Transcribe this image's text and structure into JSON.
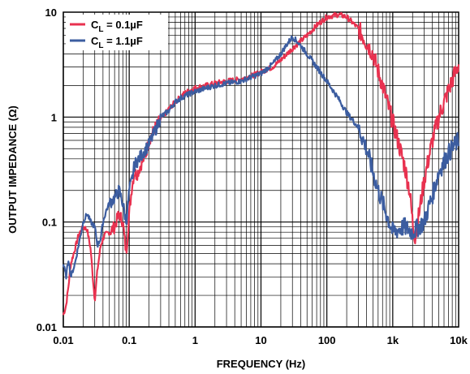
{
  "chart_data": {
    "type": "line",
    "xlabel": "FREQUENCY (Hz)",
    "ylabel": "OUTPUT IMPEDANCE (Ω)",
    "xscale": "log",
    "yscale": "log",
    "xlim": [
      0.01,
      10000
    ],
    "ylim": [
      0.01,
      10
    ],
    "grid": true,
    "legend_position": "top-left",
    "x_ticks": [
      {
        "value": 0.01,
        "label": "0.01"
      },
      {
        "value": 0.1,
        "label": "0.1"
      },
      {
        "value": 1,
        "label": "1"
      },
      {
        "value": 10,
        "label": "10"
      },
      {
        "value": 100,
        "label": "100"
      },
      {
        "value": 1000,
        "label": "1k"
      },
      {
        "value": 10000,
        "label": "10k"
      }
    ],
    "y_ticks": [
      {
        "value": 0.01,
        "label": "0.01"
      },
      {
        "value": 0.1,
        "label": "0.1"
      },
      {
        "value": 1,
        "label": "1"
      },
      {
        "value": 10,
        "label": "10"
      }
    ],
    "series": [
      {
        "name": "CL = 0.1µF",
        "legend_main": "C",
        "legend_sub": "L",
        "legend_rest": " = 0.1µF",
        "color": "#E8314F",
        "x": [
          0.01,
          0.011,
          0.012,
          0.013,
          0.015,
          0.017,
          0.02,
          0.023,
          0.026,
          0.028,
          0.03,
          0.033,
          0.037,
          0.042,
          0.05,
          0.06,
          0.07,
          0.08,
          0.09,
          0.1,
          0.11,
          0.12,
          0.13,
          0.15,
          0.18,
          0.2,
          0.25,
          0.3,
          0.4,
          0.5,
          0.7,
          1,
          1.5,
          2,
          3,
          5,
          7,
          10,
          15,
          20,
          30,
          50,
          70,
          100,
          150,
          200,
          300,
          500,
          700,
          1000,
          1500,
          1800,
          2000,
          2200,
          2500,
          3000,
          4000,
          5000,
          7000,
          10000
        ],
        "y": [
          0.013,
          0.016,
          0.025,
          0.04,
          0.055,
          0.075,
          0.09,
          0.085,
          0.055,
          0.03,
          0.018,
          0.035,
          0.06,
          0.075,
          0.08,
          0.09,
          0.12,
          0.1,
          0.05,
          0.12,
          0.22,
          0.3,
          0.28,
          0.35,
          0.45,
          0.6,
          0.8,
          0.95,
          1.2,
          1.4,
          1.7,
          1.9,
          2.0,
          2.1,
          2.2,
          2.3,
          2.45,
          2.7,
          3.0,
          3.5,
          4.5,
          6.0,
          7.5,
          9.0,
          9.5,
          9.0,
          7.0,
          4.0,
          2.0,
          0.9,
          0.35,
          0.2,
          0.1,
          0.07,
          0.12,
          0.25,
          0.6,
          1.0,
          1.8,
          3.2
        ]
      },
      {
        "name": "CL = 1.1µF",
        "legend_main": "C",
        "legend_sub": "L",
        "legend_rest": " = 1.1µF",
        "color": "#3C5DA0",
        "x": [
          0.01,
          0.011,
          0.012,
          0.013,
          0.015,
          0.017,
          0.02,
          0.023,
          0.026,
          0.03,
          0.033,
          0.037,
          0.04,
          0.045,
          0.05,
          0.06,
          0.07,
          0.08,
          0.09,
          0.1,
          0.11,
          0.12,
          0.14,
          0.16,
          0.2,
          0.25,
          0.3,
          0.4,
          0.5,
          0.7,
          1,
          1.5,
          2,
          3,
          5,
          7,
          10,
          15,
          20,
          25,
          30,
          35,
          40,
          50,
          70,
          100,
          150,
          200,
          300,
          400,
          500,
          600,
          800,
          1000,
          1500,
          2000,
          3000,
          4000,
          5000,
          7000,
          10000
        ],
        "y": [
          0.04,
          0.03,
          0.045,
          0.03,
          0.04,
          0.06,
          0.1,
          0.12,
          0.1,
          0.09,
          0.06,
          0.07,
          0.1,
          0.13,
          0.15,
          0.17,
          0.2,
          0.15,
          0.1,
          0.2,
          0.25,
          0.35,
          0.4,
          0.45,
          0.55,
          0.75,
          1.0,
          1.15,
          1.4,
          1.6,
          1.75,
          1.9,
          2.0,
          2.1,
          2.2,
          2.4,
          2.6,
          3.2,
          4.0,
          5.0,
          5.8,
          5.3,
          4.8,
          4.0,
          3.0,
          2.2,
          1.5,
          1.1,
          0.8,
          0.5,
          0.3,
          0.2,
          0.12,
          0.08,
          0.09,
          0.08,
          0.1,
          0.18,
          0.3,
          0.45,
          0.6
        ]
      }
    ]
  }
}
